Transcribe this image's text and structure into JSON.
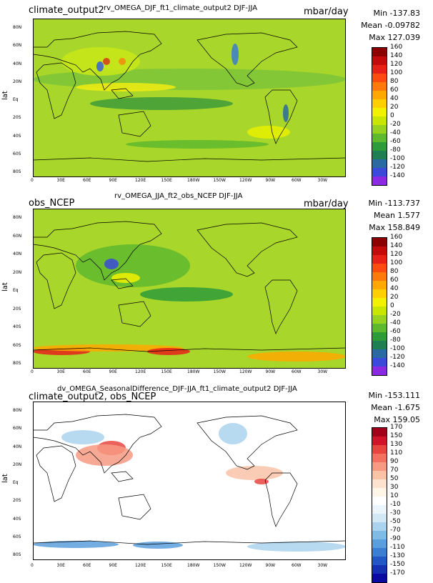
{
  "panels": [
    {
      "left_title": "climate_output2",
      "center_title": "rv_OMEGA_DJF_ft1_climate_output2  DJF-JJA",
      "units": "mbar/day",
      "stats": {
        "min": "Min -137.83",
        "mean": "Mean -0.09782",
        "max": "Max 127.039"
      },
      "ylabel": "lat",
      "lat_ticks": [
        "80N",
        "60N",
        "40N",
        "20N",
        "Eq",
        "20S",
        "40S",
        "60S",
        "80S"
      ],
      "lon_ticks": [
        "0",
        "30E",
        "60E",
        "90E",
        "120E",
        "150E",
        "180W",
        "150W",
        "120W",
        "90W",
        "60W",
        "30W"
      ],
      "colorbar": {
        "labels": [
          "160",
          "140",
          "120",
          "100",
          "80",
          "60",
          "40",
          "20",
          "0",
          "-20",
          "-40",
          "-60",
          "-80",
          "-100",
          "-120",
          "-140"
        ],
        "colors": [
          "#8b0000",
          "#c40a0a",
          "#e8201a",
          "#ff4a12",
          "#ff7a0a",
          "#ffa800",
          "#ffd000",
          "#f2f200",
          "#c8e600",
          "#96d21e",
          "#5fb82d",
          "#2e9b3a",
          "#1f7e52",
          "#2a6aa0",
          "#3b4ad8",
          "#8a2be2"
        ]
      }
    },
    {
      "left_title": "obs_NCEP",
      "center_title": "rv_OMEGA_JJA_ft2_obs_NCEP  DJF-JJA",
      "units": "mbar/day",
      "stats": {
        "min": "Min -113.737",
        "mean": "Mean 1.577",
        "max": "Max 158.849"
      },
      "ylabel": "lat",
      "lat_ticks": [
        "80N",
        "60N",
        "40N",
        "20N",
        "Eq",
        "20S",
        "40S",
        "60S",
        "80S"
      ],
      "lon_ticks": [
        "0",
        "30E",
        "60E",
        "90E",
        "120E",
        "150E",
        "180W",
        "150W",
        "120W",
        "90W",
        "60W",
        "30W"
      ],
      "colorbar": {
        "labels": [
          "160",
          "140",
          "120",
          "100",
          "80",
          "60",
          "40",
          "20",
          "0",
          "-20",
          "-40",
          "-60",
          "-80",
          "-100",
          "-120",
          "-140"
        ],
        "colors": [
          "#8b0000",
          "#c40a0a",
          "#e8201a",
          "#ff4a12",
          "#ff7a0a",
          "#ffa800",
          "#ffd000",
          "#f2f200",
          "#c8e600",
          "#96d21e",
          "#5fb82d",
          "#2e9b3a",
          "#1f7e52",
          "#2a6aa0",
          "#3b4ad8",
          "#8a2be2"
        ]
      }
    },
    {
      "left_title": "climate_output2, obs_NCEP",
      "center_title": "dv_OMEGA_SeasonalDifference_DJF-JJA_ft1_climate_output2  DJF-JJA",
      "units": "",
      "stats": {
        "min": "Min -153.111",
        "mean": "Mean -1.675",
        "max": "Max 159.05"
      },
      "ylabel": "lat",
      "lat_ticks": [
        "80N",
        "60N",
        "40N",
        "20N",
        "Eq",
        "20S",
        "40S",
        "60S",
        "80S"
      ],
      "lon_ticks": [
        "0",
        "30E",
        "60E",
        "90E",
        "120E",
        "150E",
        "180W",
        "150W",
        "120W",
        "90W",
        "60W",
        "30W"
      ],
      "colorbar": {
        "labels": [
          "170",
          "150",
          "130",
          "110",
          "90",
          "70",
          "50",
          "30",
          "10",
          "-10",
          "-30",
          "-50",
          "-70",
          "-90",
          "-110",
          "-130",
          "-150",
          "-170"
        ],
        "colors": [
          "#a3001a",
          "#d2132a",
          "#e8453f",
          "#f27160",
          "#f79a83",
          "#fac3a8",
          "#fde3cf",
          "#fff6e8",
          "#ffffff",
          "#ecf5fb",
          "#d2e8f5",
          "#abd3ee",
          "#80bbe6",
          "#5a9fdc",
          "#3b7ed2",
          "#2358c4",
          "#1530b0",
          "#0a0aa0"
        ]
      }
    }
  ]
}
